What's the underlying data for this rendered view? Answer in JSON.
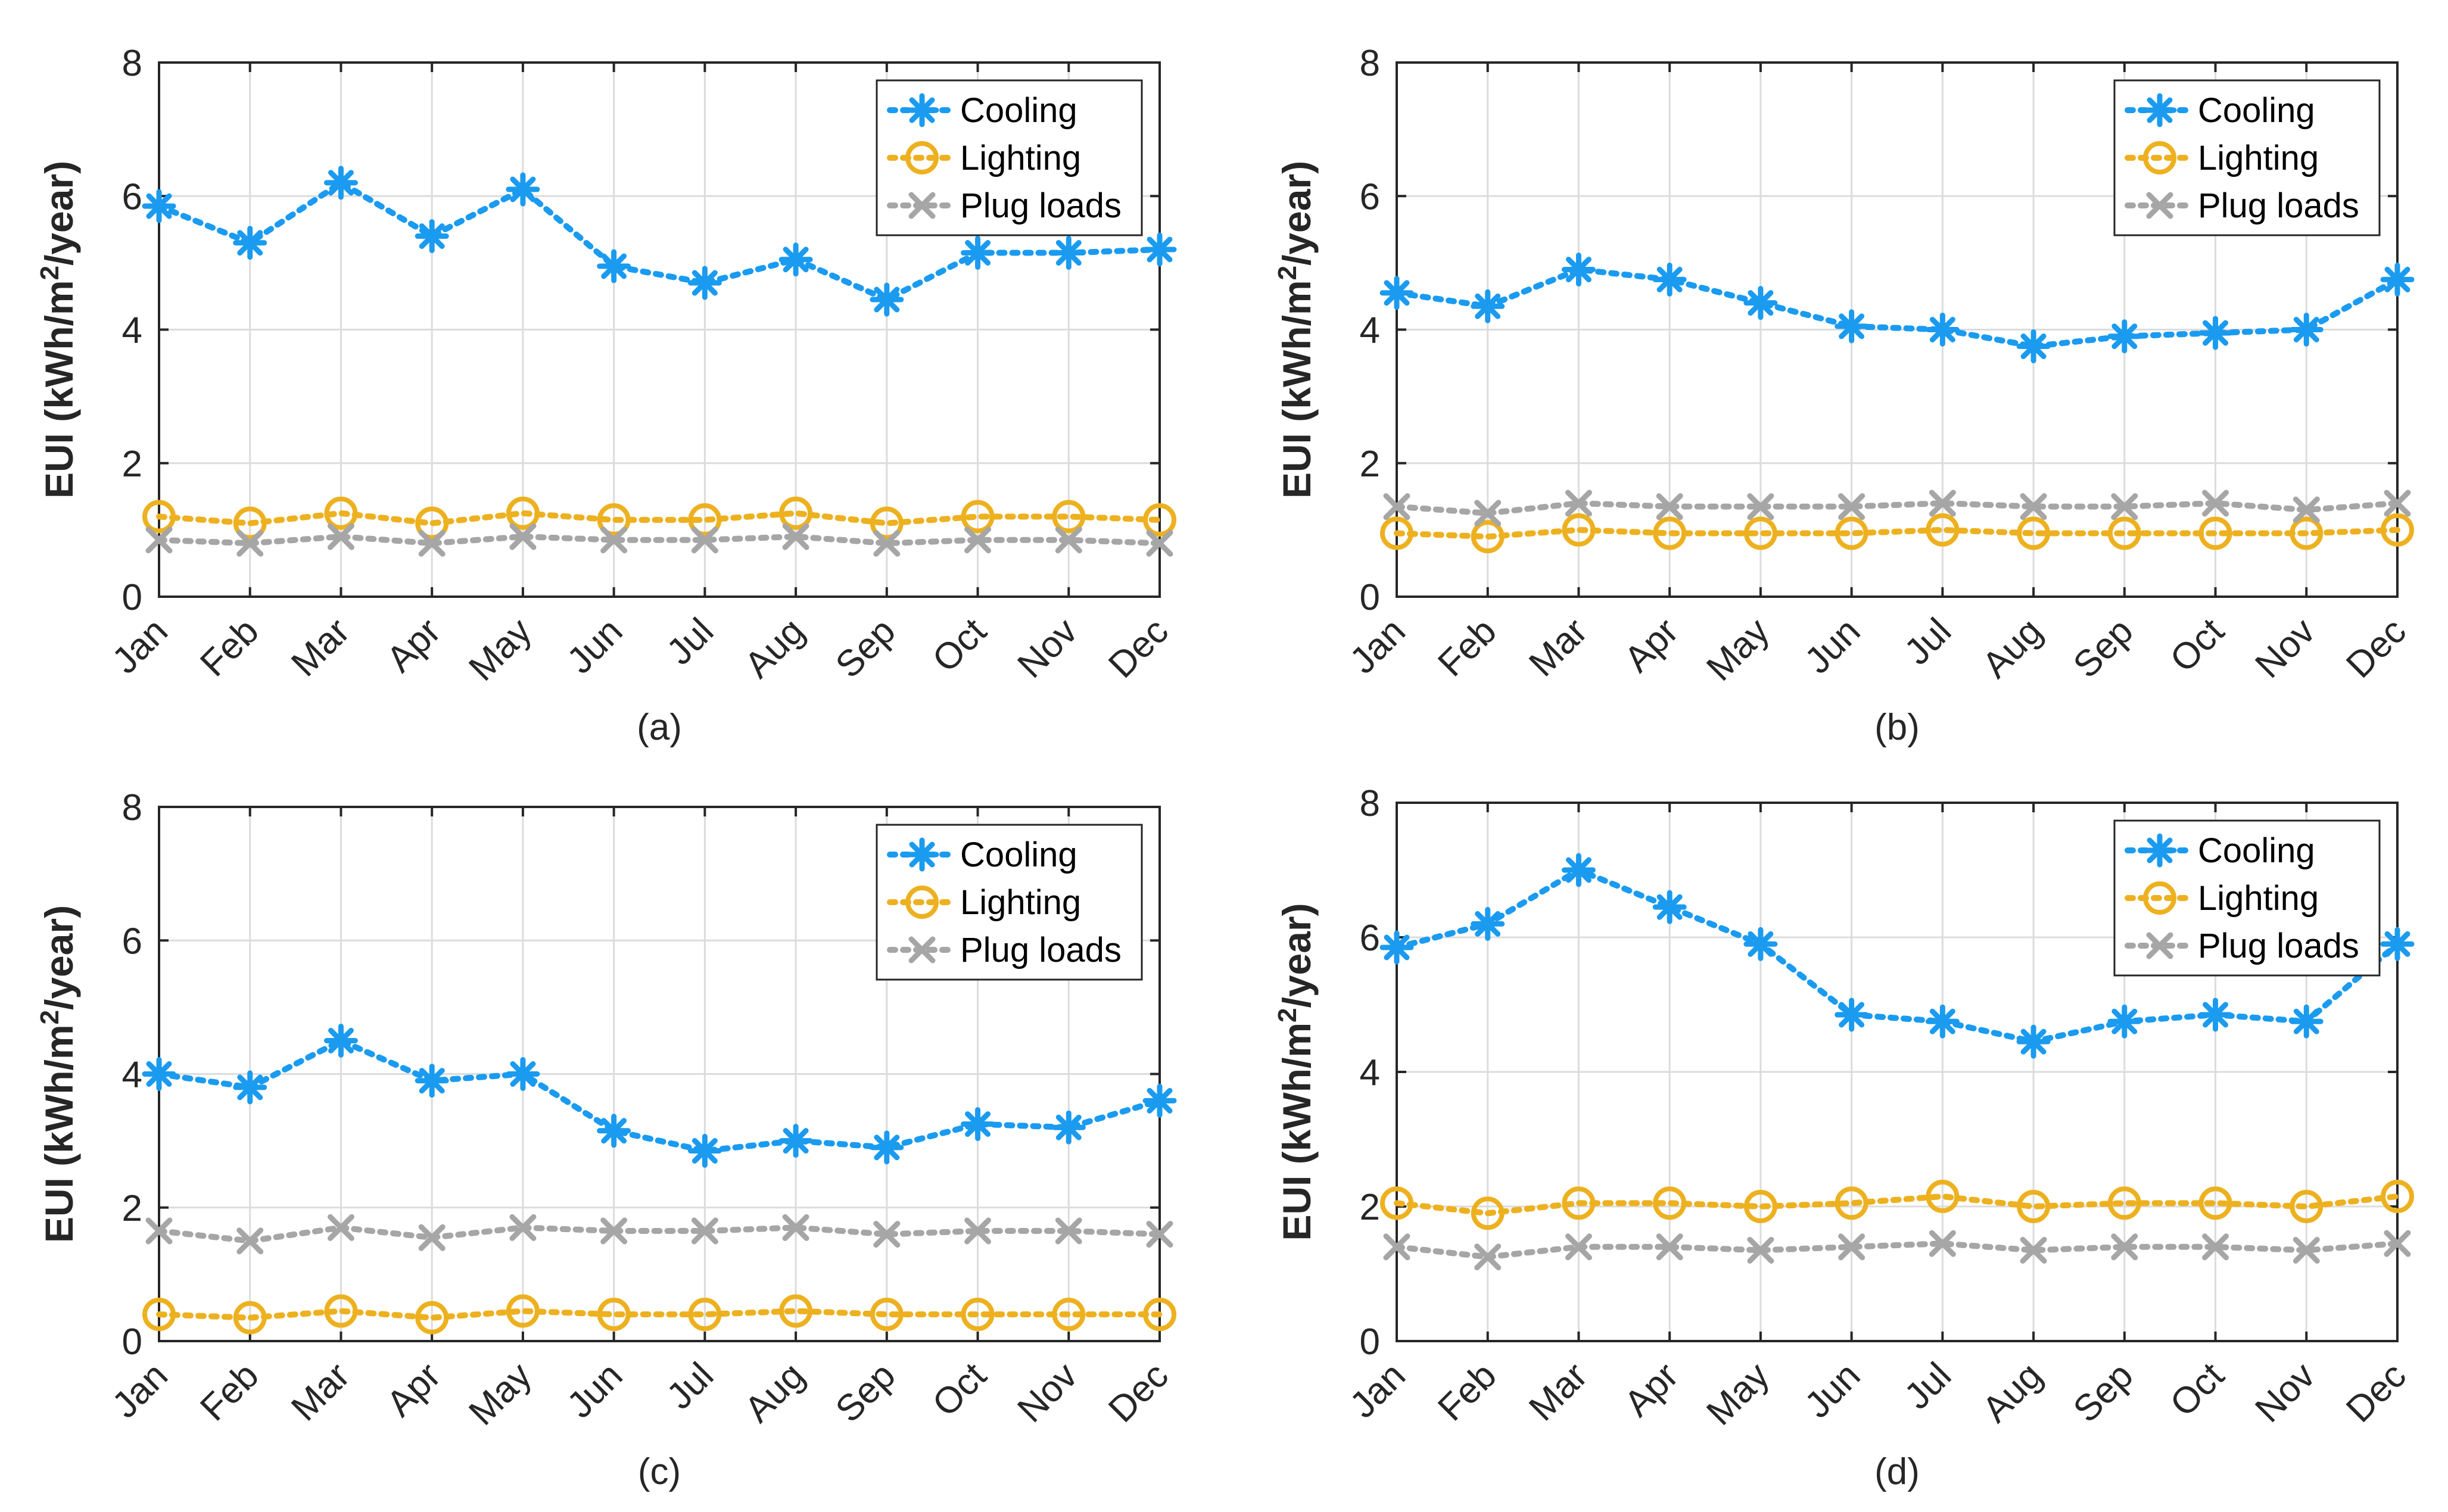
{
  "chart_data": [
    {
      "type": "line",
      "caption": "(a)",
      "ylabel": "EUI (kWh/m",
      "ylabel_sup": "2",
      "ylabel_tail": "/year)",
      "ylim": [
        0,
        8
      ],
      "yticks": [
        "0",
        "2",
        "4",
        "6",
        "8"
      ],
      "categories": [
        "Jan",
        "Feb",
        "Mar",
        "Apr",
        "May",
        "Jun",
        "Jul",
        "Aug",
        "Sep",
        "Oct",
        "Nov",
        "Dec"
      ],
      "legend": "top-right",
      "series": [
        {
          "name": "Cooling",
          "marker": "asterisk",
          "values": [
            5.85,
            5.3,
            6.2,
            5.4,
            6.1,
            4.95,
            4.7,
            5.05,
            4.45,
            5.15,
            5.15,
            5.2
          ]
        },
        {
          "name": "Lighting",
          "marker": "circle",
          "values": [
            1.2,
            1.1,
            1.25,
            1.1,
            1.25,
            1.15,
            1.15,
            1.25,
            1.1,
            1.2,
            1.2,
            1.15
          ]
        },
        {
          "name": "Plug loads",
          "marker": "cross",
          "values": [
            0.85,
            0.8,
            0.9,
            0.8,
            0.9,
            0.85,
            0.85,
            0.9,
            0.8,
            0.85,
            0.85,
            0.8
          ]
        }
      ]
    },
    {
      "type": "line",
      "caption": "(b)",
      "ylabel": "EUI (kWh/m",
      "ylabel_sup": "2",
      "ylabel_tail": "/year)",
      "ylim": [
        0,
        8
      ],
      "yticks": [
        "0",
        "2",
        "4",
        "6",
        "8"
      ],
      "categories": [
        "Jan",
        "Feb",
        "Mar",
        "Apr",
        "May",
        "Jun",
        "Jul",
        "Aug",
        "Sep",
        "Oct",
        "Nov",
        "Dec"
      ],
      "legend": "top-right",
      "series": [
        {
          "name": "Cooling",
          "marker": "asterisk",
          "values": [
            4.55,
            4.35,
            4.9,
            4.75,
            4.4,
            4.05,
            4.0,
            3.75,
            3.9,
            3.95,
            4.0,
            4.75
          ]
        },
        {
          "name": "Lighting",
          "marker": "circle",
          "values": [
            0.95,
            0.9,
            1.0,
            0.95,
            0.95,
            0.95,
            1.0,
            0.95,
            0.95,
            0.95,
            0.95,
            1.0
          ]
        },
        {
          "name": "Plug loads",
          "marker": "cross",
          "values": [
            1.35,
            1.25,
            1.4,
            1.35,
            1.35,
            1.35,
            1.4,
            1.35,
            1.35,
            1.4,
            1.3,
            1.4
          ]
        }
      ]
    },
    {
      "type": "line",
      "caption": "(c)",
      "ylabel": "EUI (kWh/m",
      "ylabel_sup": "2",
      "ylabel_tail": "/year)",
      "ylim": [
        0,
        8
      ],
      "yticks": [
        "0",
        "2",
        "4",
        "6",
        "8"
      ],
      "categories": [
        "Jan",
        "Feb",
        "Mar",
        "Apr",
        "May",
        "Jun",
        "Jul",
        "Aug",
        "Sep",
        "Oct",
        "Nov",
        "Dec"
      ],
      "legend": "top-right",
      "series": [
        {
          "name": "Cooling",
          "marker": "asterisk",
          "values": [
            4.0,
            3.8,
            4.5,
            3.9,
            4.0,
            3.15,
            2.85,
            3.0,
            2.9,
            3.25,
            3.2,
            3.6
          ]
        },
        {
          "name": "Lighting",
          "marker": "circle",
          "values": [
            0.4,
            0.35,
            0.45,
            0.35,
            0.45,
            0.4,
            0.4,
            0.45,
            0.4,
            0.4,
            0.4,
            0.4
          ]
        },
        {
          "name": "Plug loads",
          "marker": "cross",
          "values": [
            1.65,
            1.5,
            1.7,
            1.55,
            1.7,
            1.65,
            1.65,
            1.7,
            1.6,
            1.65,
            1.65,
            1.6
          ]
        }
      ]
    },
    {
      "type": "line",
      "caption": "(d)",
      "ylabel": "EUI (kWh/m",
      "ylabel_sup": "2",
      "ylabel_tail": "/year)",
      "ylim": [
        0,
        8
      ],
      "yticks": [
        "0",
        "2",
        "4",
        "6",
        "8"
      ],
      "categories": [
        "Jan",
        "Feb",
        "Mar",
        "Apr",
        "May",
        "Jun",
        "Jul",
        "Aug",
        "Sep",
        "Oct",
        "Nov",
        "Dec"
      ],
      "legend": "top-right",
      "series": [
        {
          "name": "Cooling",
          "marker": "asterisk",
          "values": [
            5.85,
            6.2,
            7.0,
            6.45,
            5.9,
            4.85,
            4.75,
            4.45,
            4.75,
            4.85,
            4.75,
            5.9
          ]
        },
        {
          "name": "Lighting",
          "marker": "circle",
          "values": [
            2.05,
            1.9,
            2.05,
            2.05,
            2.0,
            2.05,
            2.15,
            2.0,
            2.05,
            2.05,
            2.0,
            2.15
          ]
        },
        {
          "name": "Plug loads",
          "marker": "cross",
          "values": [
            1.4,
            1.25,
            1.4,
            1.4,
            1.35,
            1.4,
            1.45,
            1.35,
            1.4,
            1.4,
            1.35,
            1.45
          ]
        }
      ]
    }
  ],
  "colors": {
    "Cooling": "#1a9bf0",
    "Lighting": "#edb120",
    "Plug loads": "#a6a6a6",
    "axis": "#262626",
    "grid": "#dcdcdc"
  }
}
